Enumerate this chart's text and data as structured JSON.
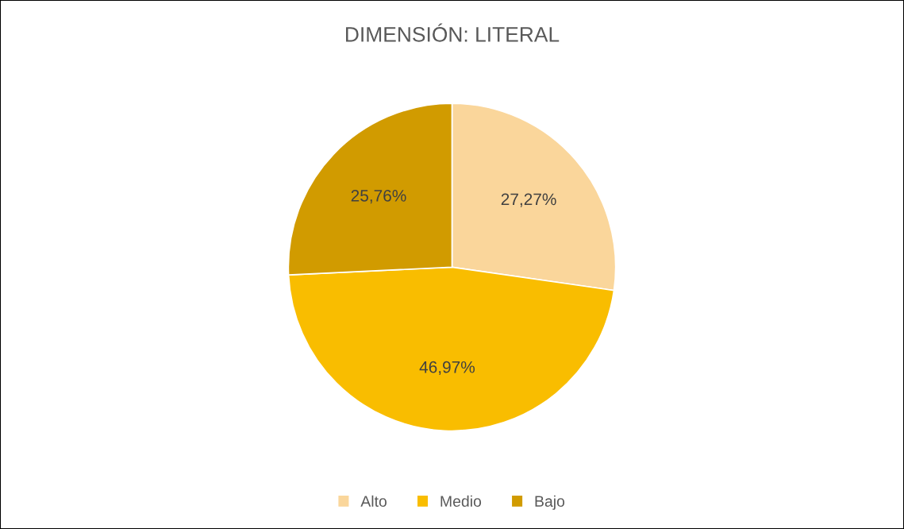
{
  "chart_data": {
    "type": "pie",
    "title": "DIMENSIÓN: LITERAL",
    "categories": [
      "Alto",
      "Medio",
      "Bajo"
    ],
    "values": [
      27.27,
      46.97,
      25.76
    ],
    "colors": [
      "#fad69b",
      "#f9bd00",
      "#d19b00"
    ],
    "value_labels": [
      "27,27%",
      "46,97%",
      "25,76%"
    ],
    "legend": "bottom"
  }
}
